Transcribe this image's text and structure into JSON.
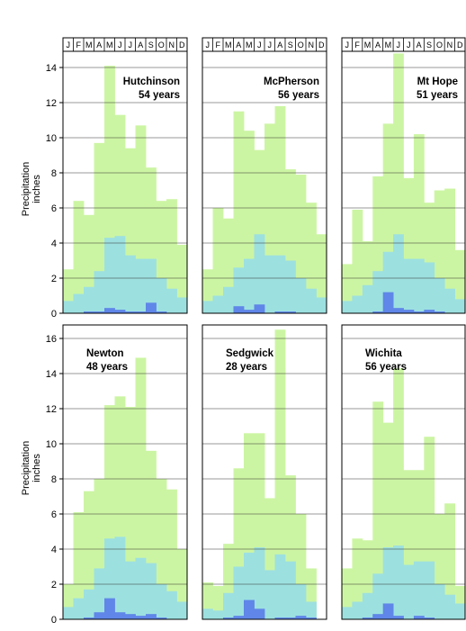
{
  "figure": {
    "ylabel_line1": "Precipitation",
    "ylabel_line2": "inches",
    "month_letters": [
      "J",
      "F",
      "M",
      "A",
      "M",
      "J",
      "J",
      "A",
      "S",
      "O",
      "N",
      "D"
    ]
  },
  "colors": {
    "max_band": "#ccf5a3",
    "mean_band": "#9de0e0",
    "min_band": "#5f86e8",
    "frame": "#000000",
    "grid": "#333333"
  },
  "chart_data": [
    {
      "type": "area",
      "station": "Hutchinson",
      "record": "54 years",
      "ylim": [
        0,
        15
      ],
      "yticks": [
        0,
        2,
        4,
        6,
        8,
        10,
        12,
        14
      ],
      "series": [
        {
          "role": "max",
          "values": [
            2.5,
            6.4,
            5.6,
            9.7,
            14.1,
            11.3,
            9.4,
            10.7,
            8.3,
            6.4,
            6.5,
            3.9
          ]
        },
        {
          "role": "mean",
          "values": [
            0.7,
            1.1,
            1.5,
            2.4,
            4.3,
            4.4,
            3.3,
            3.1,
            3.1,
            2.0,
            1.4,
            0.9
          ]
        },
        {
          "role": "min",
          "values": [
            0.0,
            0.0,
            0.1,
            0.1,
            0.3,
            0.2,
            0.1,
            0.1,
            0.6,
            0.1,
            0.0,
            0.0
          ]
        }
      ]
    },
    {
      "type": "area",
      "station": "McPherson",
      "record": "56 years",
      "ylim": [
        0,
        15
      ],
      "yticks": [
        0,
        2,
        4,
        6,
        8,
        10,
        12,
        14
      ],
      "series": [
        {
          "role": "max",
          "values": [
            2.5,
            6.0,
            5.4,
            11.5,
            10.4,
            9.3,
            10.8,
            11.8,
            8.2,
            7.9,
            6.3,
            4.5
          ]
        },
        {
          "role": "mean",
          "values": [
            0.7,
            1.0,
            1.5,
            2.6,
            3.1,
            4.5,
            3.3,
            3.3,
            3.0,
            2.0,
            1.4,
            0.9
          ]
        },
        {
          "role": "min",
          "values": [
            0.0,
            0.0,
            0.0,
            0.4,
            0.2,
            0.5,
            0.0,
            0.1,
            0.1,
            0.0,
            0.0,
            0.0
          ]
        }
      ]
    },
    {
      "type": "area",
      "station": "Mt Hope",
      "record": "51 years",
      "ylim": [
        0,
        15
      ],
      "yticks": [
        0,
        2,
        4,
        6,
        8,
        10,
        12,
        14
      ],
      "series": [
        {
          "role": "max",
          "values": [
            2.8,
            5.9,
            4.1,
            7.8,
            10.8,
            14.8,
            7.7,
            10.2,
            6.3,
            7.0,
            7.1,
            3.6
          ]
        },
        {
          "role": "mean",
          "values": [
            0.7,
            1.0,
            1.6,
            2.4,
            3.5,
            4.5,
            3.1,
            3.1,
            2.9,
            2.0,
            1.4,
            0.8
          ]
        },
        {
          "role": "min",
          "values": [
            0.0,
            0.0,
            0.0,
            0.1,
            1.2,
            0.3,
            0.2,
            0.1,
            0.2,
            0.1,
            0.0,
            0.0
          ]
        }
      ]
    },
    {
      "type": "area",
      "station": "Newton",
      "record": "48 years",
      "ylim": [
        0,
        17
      ],
      "yticks": [
        0,
        2,
        4,
        6,
        8,
        10,
        12,
        14,
        16
      ],
      "series": [
        {
          "role": "max",
          "values": [
            2.0,
            6.1,
            7.3,
            8.0,
            12.2,
            12.7,
            12.1,
            14.9,
            9.6,
            8.0,
            7.4,
            4.0
          ]
        },
        {
          "role": "mean",
          "values": [
            0.7,
            1.2,
            1.7,
            2.9,
            4.6,
            4.7,
            3.3,
            3.5,
            3.2,
            2.0,
            1.6,
            1.0
          ]
        },
        {
          "role": "min",
          "values": [
            0.0,
            0.0,
            0.1,
            0.4,
            1.2,
            0.4,
            0.3,
            0.2,
            0.3,
            0.1,
            0.0,
            0.0
          ]
        }
      ]
    },
    {
      "type": "area",
      "station": "Sedgwick",
      "record": "28 years",
      "ylim": [
        0,
        17
      ],
      "yticks": [
        0,
        2,
        4,
        6,
        8,
        10,
        12,
        14,
        16
      ],
      "series": [
        {
          "role": "max",
          "values": [
            2.1,
            1.9,
            4.3,
            8.6,
            10.6,
            10.6,
            6.9,
            16.5,
            8.2,
            6.0,
            2.9,
            0.0
          ]
        },
        {
          "role": "mean",
          "values": [
            0.6,
            0.5,
            1.5,
            3.0,
            3.8,
            4.1,
            2.8,
            3.7,
            3.3,
            2.0,
            1.0,
            0.0
          ]
        },
        {
          "role": "min",
          "values": [
            0.0,
            0.0,
            0.1,
            0.2,
            1.1,
            0.6,
            0.0,
            0.1,
            0.1,
            0.2,
            0.1,
            0.0
          ]
        }
      ]
    },
    {
      "type": "area",
      "station": "Wichita",
      "record": "56 years",
      "ylim": [
        0,
        17
      ],
      "yticks": [
        0,
        2,
        4,
        6,
        8,
        10,
        12,
        14,
        16
      ],
      "series": [
        {
          "role": "max",
          "values": [
            2.9,
            4.6,
            4.5,
            12.4,
            11.2,
            14.3,
            8.5,
            8.5,
            10.4,
            6.0,
            6.6,
            1.9
          ]
        },
        {
          "role": "mean",
          "values": [
            0.7,
            1.0,
            1.5,
            2.6,
            4.1,
            4.2,
            3.1,
            3.3,
            3.3,
            2.0,
            1.4,
            0.9
          ]
        },
        {
          "role": "min",
          "values": [
            0.0,
            0.0,
            0.1,
            0.3,
            0.9,
            0.2,
            0.0,
            0.2,
            0.1,
            0.0,
            0.0,
            0.0
          ]
        }
      ]
    }
  ]
}
